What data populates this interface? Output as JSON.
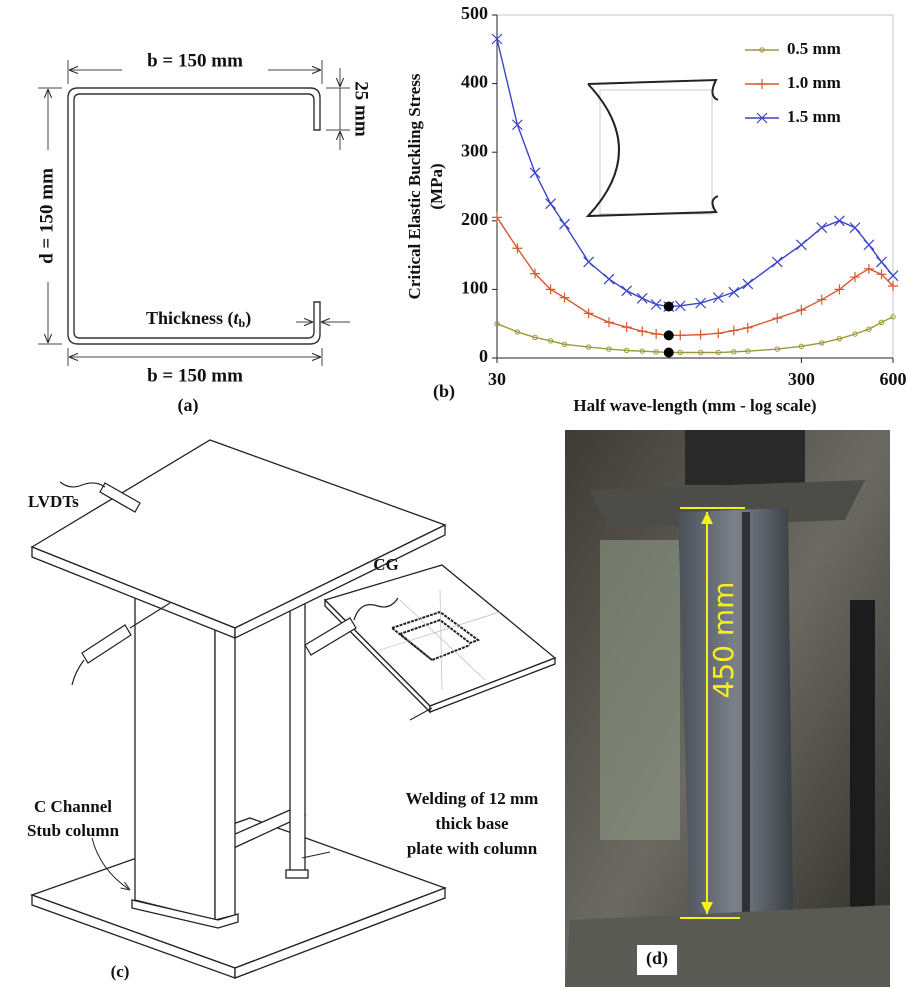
{
  "panel_a": {
    "label": "(a)",
    "top_width": "b = 150 mm",
    "lip_height": "25 mm",
    "depth": "d = 150 mm",
    "thickness": {
      "text": "Thickness (",
      "symbol": "t",
      "subscript": "b",
      "close": ")"
    },
    "bottom_width": "b = 150 mm"
  },
  "chart_data": {
    "type": "line",
    "panel_label": "(b)",
    "xlabel": "Half wave-length (mm  - log scale)",
    "ylabel": [
      "Critical  Elastic Buckling Stress",
      "(MPa)"
    ],
    "xscale": "log",
    "xlim": [
      30,
      600
    ],
    "xticks": [
      30,
      300,
      600
    ],
    "ylim": [
      0,
      500
    ],
    "yticks": [
      0,
      100,
      200,
      300,
      400,
      500
    ],
    "grid": false,
    "legend": "upper right",
    "x": [
      30,
      35,
      40,
      45,
      50,
      60,
      70,
      80,
      90,
      100,
      110,
      120,
      140,
      160,
      180,
      200,
      250,
      300,
      350,
      400,
      450,
      500,
      550,
      600
    ],
    "series": [
      {
        "name": "0.5 mm",
        "color": "#9a9a3a",
        "marker": "circle",
        "values": [
          50,
          38,
          30,
          25,
          20,
          16,
          13,
          11,
          10,
          9,
          8,
          8,
          8,
          8,
          9,
          10,
          13,
          17,
          22,
          28,
          35,
          42,
          52,
          60
        ]
      },
      {
        "name": "1.0 mm",
        "color": "#d9582e",
        "marker": "plus",
        "values": [
          205,
          160,
          123,
          100,
          88,
          65,
          52,
          45,
          39,
          35,
          33,
          33,
          34,
          36,
          40,
          44,
          58,
          70,
          85,
          100,
          118,
          130,
          122,
          105
        ]
      },
      {
        "name": "1.5 mm",
        "color": "#3a44c8",
        "marker": "cross",
        "values": [
          465,
          340,
          270,
          225,
          195,
          140,
          115,
          98,
          87,
          78,
          75,
          76,
          80,
          88,
          96,
          108,
          140,
          165,
          190,
          200,
          190,
          165,
          140,
          120
        ]
      }
    ],
    "critical_points": {
      "x": [
        110,
        110,
        110
      ],
      "values": [
        75,
        33,
        8
      ],
      "color": "#000000"
    }
  },
  "panel_c": {
    "label": "(c)",
    "cg": "CG",
    "lvdts": "LVDTs",
    "welding": [
      "Welding of 12 mm",
      "thick base",
      "plate with column"
    ],
    "column": [
      "C Channel",
      "Stub column"
    ]
  },
  "panel_d": {
    "label": "(d)",
    "dimension": "450 mm"
  }
}
